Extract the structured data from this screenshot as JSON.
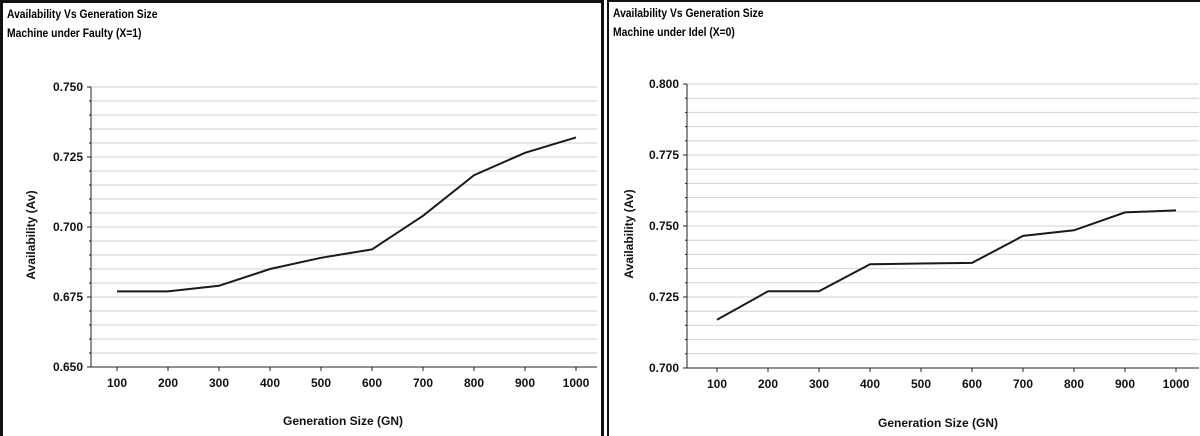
{
  "chart_data": [
    {
      "type": "line",
      "title": "Availability Vs Generation Size",
      "subtitle": "Machine under Faulty (X=1)",
      "xlabel": "Generation Size (GN)",
      "ylabel": "Availability (Av)",
      "x": [
        100,
        200,
        300,
        400,
        500,
        600,
        700,
        800,
        900,
        1000
      ],
      "series": [
        {
          "values": [
            0.677,
            0.677,
            0.679,
            0.685,
            0.689,
            0.692,
            0.704,
            0.7185,
            0.7265,
            0.732
          ]
        }
      ],
      "ylim": [
        0.65,
        0.75
      ],
      "yticks": [
        "0.650",
        "0.675",
        "0.700",
        "0.725",
        "0.750"
      ],
      "grid": true,
      "line_color": "#1a1a1a"
    },
    {
      "type": "line",
      "title": "Availability Vs Generation Size",
      "subtitle": "Machine under Idel (X=0)",
      "xlabel": "Generation Size (GN)",
      "ylabel": "Availability (Av)",
      "x": [
        100,
        200,
        300,
        400,
        500,
        600,
        700,
        800,
        900,
        1000
      ],
      "series": [
        {
          "values": [
            0.717,
            0.727,
            0.727,
            0.7365,
            0.7368,
            0.737,
            0.7465,
            0.7485,
            0.7548,
            0.7555
          ]
        }
      ],
      "ylim": [
        0.7,
        0.8
      ],
      "yticks": [
        "0.700",
        "0.725",
        "0.750",
        "0.775",
        "0.800"
      ],
      "grid": true,
      "line_color": "#1a1a1a"
    }
  ]
}
